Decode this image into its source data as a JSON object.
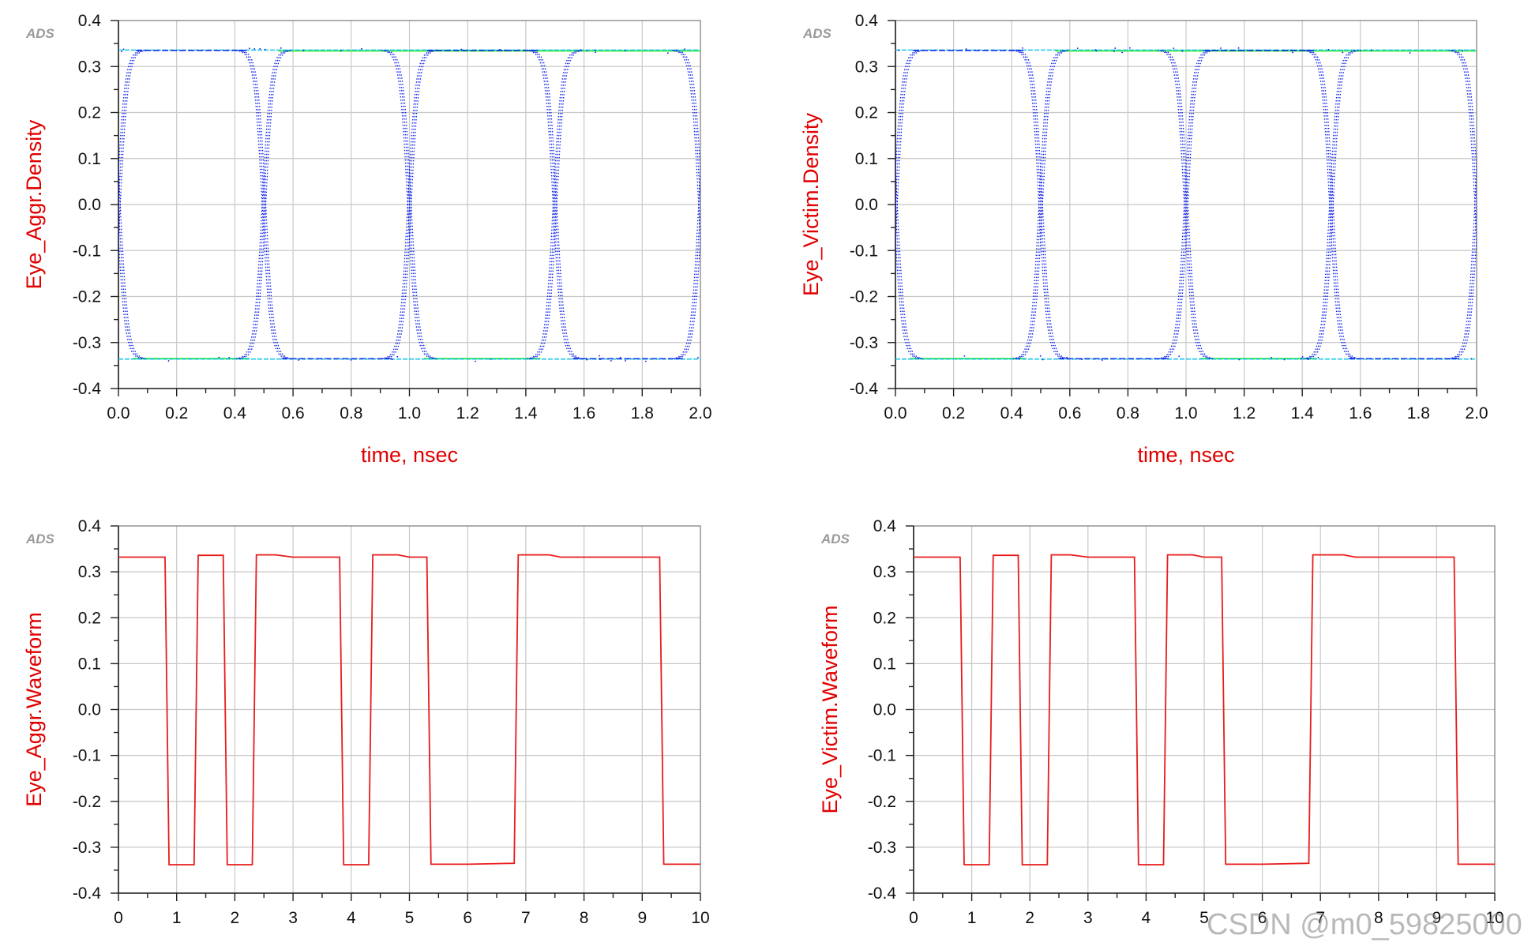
{
  "colors": {
    "axis_label": "#e00000",
    "grid": "#c8c8c8",
    "eye_trace": "#0a1ee6",
    "eye_upper_level": "#33ee33",
    "eye_level_cyan": "#19c8e6",
    "waveform": "#e81c1c",
    "watermark": "#8a8a8a"
  },
  "watermark": "CSDN @m0_59825000",
  "chart_data": [
    {
      "type": "scatter",
      "name": "eye-aggr-density",
      "logo": "ADS",
      "xlabel": "time, nsec",
      "ylabel": "Eye_Aggr.Density",
      "xlim": [
        0.0,
        2.0
      ],
      "ylim": [
        -0.4,
        0.4
      ],
      "x_ticks": [
        "0.0",
        "0.2",
        "0.4",
        "0.6",
        "0.8",
        "1.0",
        "1.2",
        "1.4",
        "1.6",
        "1.8",
        "2.0"
      ],
      "y_ticks": [
        "0.4",
        "0.3",
        "0.2",
        "0.1",
        "0.0",
        "-0.1",
        "-0.2",
        "-0.3",
        "-0.4"
      ],
      "grid": true,
      "high_level": 0.335,
      "low_level": -0.335,
      "crossing_times": [
        0.0,
        0.5,
        1.0,
        1.5,
        2.0
      ]
    },
    {
      "type": "scatter",
      "name": "eye-victim-density",
      "logo": "ADS",
      "xlabel": "time, nsec",
      "ylabel": "Eye_Victim.Density",
      "xlim": [
        0.0,
        2.0
      ],
      "ylim": [
        -0.4,
        0.4
      ],
      "x_ticks": [
        "0.0",
        "0.2",
        "0.4",
        "0.6",
        "0.8",
        "1.0",
        "1.2",
        "1.4",
        "1.6",
        "1.8",
        "2.0"
      ],
      "y_ticks": [
        "0.4",
        "0.3",
        "0.2",
        "0.1",
        "0.0",
        "-0.1",
        "-0.2",
        "-0.3",
        "-0.4"
      ],
      "grid": true,
      "high_level": 0.335,
      "low_level": -0.335,
      "crossing_times": [
        0.0,
        0.5,
        1.0,
        1.5,
        2.0
      ]
    },
    {
      "type": "line",
      "name": "eye-aggr-waveform",
      "logo": "ADS",
      "xlabel": "",
      "ylabel": "Eye_Aggr.Waveform",
      "xlim": [
        0,
        10
      ],
      "ylim": [
        -0.4,
        0.4
      ],
      "x_ticks": [
        "0",
        "1",
        "2",
        "3",
        "4",
        "5",
        "6",
        "7",
        "8",
        "9",
        "10"
      ],
      "y_ticks": [
        "0.4",
        "0.3",
        "0.2",
        "0.1",
        "0.0",
        "-0.1",
        "-0.2",
        "-0.3",
        "-0.4"
      ],
      "grid": true,
      "x": [
        0,
        0.8,
        0.87,
        1.3,
        1.37,
        1.8,
        1.87,
        2.3,
        2.37,
        2.7,
        3.0,
        3.8,
        3.87,
        4.3,
        4.37,
        4.8,
        5.0,
        5.3,
        5.37,
        6.0,
        6.8,
        6.87,
        7.4,
        7.6,
        9.3,
        9.37,
        10
      ],
      "y": [
        0.332,
        0.332,
        -0.338,
        -0.338,
        0.336,
        0.336,
        -0.338,
        -0.338,
        0.337,
        0.337,
        0.332,
        0.332,
        -0.338,
        -0.338,
        0.337,
        0.337,
        0.332,
        0.332,
        -0.337,
        -0.337,
        -0.335,
        0.337,
        0.337,
        0.332,
        0.332,
        -0.337,
        -0.337
      ]
    },
    {
      "type": "line",
      "name": "eye-victim-waveform",
      "logo": "ADS",
      "xlabel": "",
      "ylabel": "Eye_Victim.Waveform",
      "xlim": [
        0,
        10
      ],
      "ylim": [
        -0.4,
        0.4
      ],
      "x_ticks": [
        "0",
        "1",
        "2",
        "3",
        "4",
        "5",
        "6",
        "7",
        "8",
        "9",
        "10"
      ],
      "y_ticks": [
        "0.4",
        "0.3",
        "0.2",
        "0.1",
        "0.0",
        "-0.1",
        "-0.2",
        "-0.3",
        "-0.4"
      ],
      "grid": true,
      "x": [
        0,
        0.8,
        0.87,
        1.3,
        1.37,
        1.8,
        1.87,
        2.3,
        2.37,
        2.7,
        3.0,
        3.8,
        3.87,
        4.3,
        4.37,
        4.8,
        5.0,
        5.3,
        5.37,
        6.0,
        6.8,
        6.87,
        7.4,
        7.6,
        9.3,
        9.37,
        10
      ],
      "y": [
        0.332,
        0.332,
        -0.338,
        -0.338,
        0.336,
        0.336,
        -0.338,
        -0.338,
        0.337,
        0.337,
        0.332,
        0.332,
        -0.338,
        -0.338,
        0.337,
        0.337,
        0.332,
        0.332,
        -0.337,
        -0.337,
        -0.335,
        0.337,
        0.337,
        0.332,
        0.332,
        -0.337,
        -0.337
      ]
    }
  ]
}
